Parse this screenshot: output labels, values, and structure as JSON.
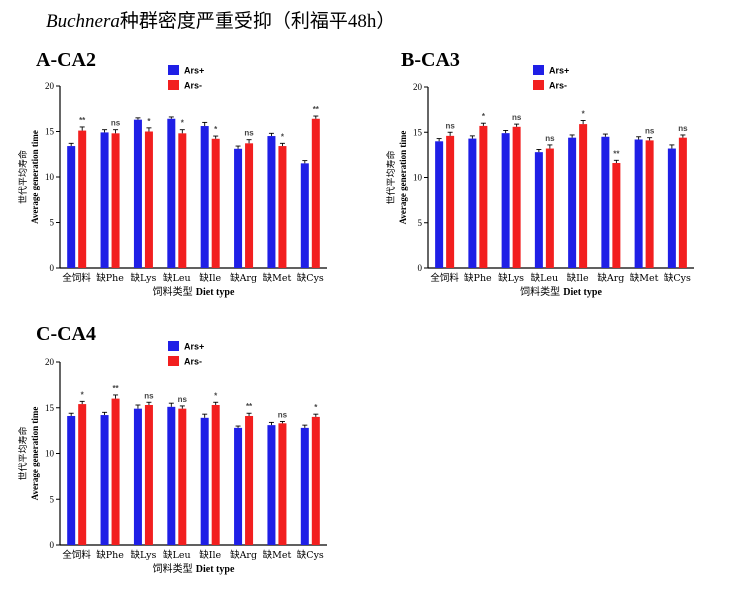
{
  "figure": {
    "title_italic": "Buchnera",
    "title_rest": "种群密度严重受抑（利福平48h）"
  },
  "colors": {
    "Ars+": "#1f1fe6",
    "Ars-": "#f21f1f"
  },
  "chart_data": [
    {
      "type": "bar",
      "panel_label": "A-CA2",
      "categories": [
        "全饲料",
        "缺Phe",
        "缺Lys",
        "缺Leu",
        "缺Ile",
        "缺Arg",
        "缺Met",
        "缺Cys"
      ],
      "series": [
        {
          "name": "Ars+",
          "values": [
            13.4,
            14.9,
            16.3,
            16.4,
            15.6,
            13.1,
            14.5,
            11.5
          ],
          "errors": [
            0.3,
            0.3,
            0.2,
            0.2,
            0.4,
            0.3,
            0.3,
            0.3
          ]
        },
        {
          "name": "Ars-",
          "values": [
            15.1,
            14.8,
            15.0,
            14.8,
            14.2,
            13.7,
            13.4,
            16.4
          ],
          "errors": [
            0.4,
            0.4,
            0.4,
            0.4,
            0.3,
            0.4,
            0.3,
            0.3
          ]
        }
      ],
      "significance": [
        "**",
        "ns",
        "*",
        "*",
        "*",
        "ns",
        "*",
        "**"
      ],
      "ylabel_cn": "世代平均寿命",
      "ylabel_en": "Average generation time",
      "xlabel_cn": "饲料类型",
      "xlabel_en": "Diet type",
      "ylim": [
        0,
        20
      ],
      "yticks": [
        "0",
        "5",
        "10",
        "15",
        "20"
      ],
      "legend_placement": "top-center"
    },
    {
      "type": "bar",
      "panel_label": "B-CA3",
      "categories": [
        "全饲料",
        "缺Phe",
        "缺Lys",
        "缺Leu",
        "缺Ile",
        "缺Arg",
        "缺Met",
        "缺Cys"
      ],
      "series": [
        {
          "name": "Ars+",
          "values": [
            14.0,
            14.3,
            14.9,
            12.8,
            14.4,
            14.5,
            14.2,
            13.2
          ],
          "errors": [
            0.3,
            0.3,
            0.3,
            0.3,
            0.3,
            0.3,
            0.3,
            0.4
          ]
        },
        {
          "name": "Ars-",
          "values": [
            14.6,
            15.7,
            15.6,
            13.2,
            15.9,
            11.6,
            14.1,
            14.4
          ],
          "errors": [
            0.4,
            0.3,
            0.3,
            0.4,
            0.4,
            0.3,
            0.3,
            0.3
          ]
        }
      ],
      "significance": [
        "ns",
        "*",
        "ns",
        "ns",
        "*",
        "**",
        "ns",
        "ns"
      ],
      "ylabel_cn": "世代平均寿命",
      "ylabel_en": "Average generation time",
      "xlabel_cn": "饲料类型",
      "xlabel_en": "Diet type",
      "ylim": [
        0,
        20
      ],
      "yticks": [
        "0",
        "5",
        "10",
        "15",
        "20"
      ],
      "legend_placement": "top-center"
    },
    {
      "type": "bar",
      "panel_label": "C-CA4",
      "categories": [
        "全饲料",
        "缺Phe",
        "缺Lys",
        "缺Leu",
        "缺Ile",
        "缺Arg",
        "缺Met",
        "缺Cys"
      ],
      "series": [
        {
          "name": "Ars+",
          "values": [
            14.1,
            14.2,
            14.9,
            15.1,
            13.9,
            12.8,
            13.1,
            12.8
          ],
          "errors": [
            0.3,
            0.3,
            0.4,
            0.4,
            0.4,
            0.2,
            0.3,
            0.3
          ]
        },
        {
          "name": "Ars-",
          "values": [
            15.4,
            16.0,
            15.3,
            14.9,
            15.3,
            14.1,
            13.3,
            14.0
          ],
          "errors": [
            0.3,
            0.4,
            0.3,
            0.3,
            0.3,
            0.3,
            0.2,
            0.3
          ]
        }
      ],
      "significance": [
        "*",
        "**",
        "ns",
        "ns",
        "*",
        "**",
        "ns",
        "*"
      ],
      "ylabel_cn": "世代平均寿命",
      "ylabel_en": "Average generation time",
      "xlabel_cn": "饲料类型",
      "xlabel_en": "Diet type",
      "ylim": [
        0,
        20
      ],
      "yticks": [
        "0",
        "5",
        "10",
        "15",
        "20"
      ],
      "legend_placement": "top-center"
    }
  ]
}
